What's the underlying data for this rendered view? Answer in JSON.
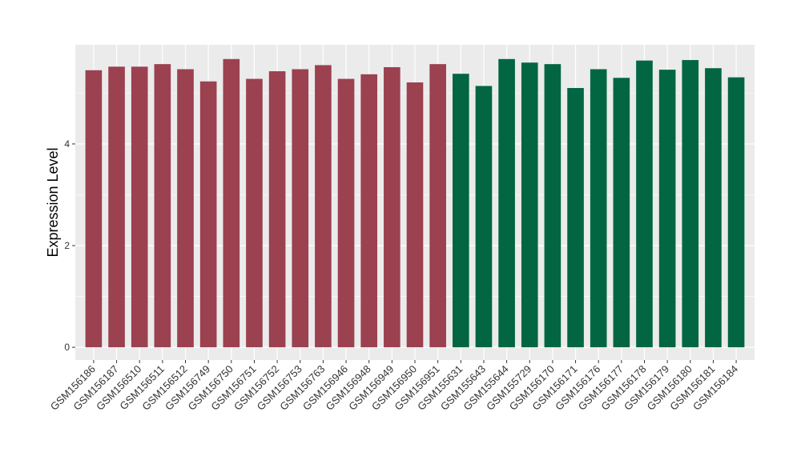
{
  "chart_data": {
    "type": "bar",
    "ylabel": "Expression Level",
    "xlabel": "",
    "ylim": [
      -0.25,
      5.95
    ],
    "yticks": [
      0,
      2,
      4
    ],
    "grid": true,
    "legend": "none",
    "panel_background": "#ebebeb",
    "gridline_color": "#ffffff",
    "categories": [
      "GSM156186",
      "GSM156187",
      "GSM156510",
      "GSM156511",
      "GSM156512",
      "GSM156749",
      "GSM156750",
      "GSM156751",
      "GSM156752",
      "GSM156753",
      "GSM156763",
      "GSM156946",
      "GSM156948",
      "GSM156949",
      "GSM156950",
      "GSM156951",
      "GSM155631",
      "GSM155643",
      "GSM155644",
      "GSM155729",
      "GSM156170",
      "GSM156171",
      "GSM156176",
      "GSM156177",
      "GSM156178",
      "GSM156179",
      "GSM156180",
      "GSM156181",
      "GSM156184"
    ],
    "values": [
      5.45,
      5.52,
      5.52,
      5.57,
      5.47,
      5.23,
      5.67,
      5.28,
      5.43,
      5.47,
      5.55,
      5.28,
      5.37,
      5.51,
      5.21,
      5.57,
      5.38,
      5.14,
      5.67,
      5.6,
      5.57,
      5.1,
      5.47,
      5.3,
      5.64,
      5.46,
      5.65,
      5.49,
      5.31
    ],
    "colors": [
      "#9b4150",
      "#9b4150",
      "#9b4150",
      "#9b4150",
      "#9b4150",
      "#9b4150",
      "#9b4150",
      "#9b4150",
      "#9b4150",
      "#9b4150",
      "#9b4150",
      "#9b4150",
      "#9b4150",
      "#9b4150",
      "#9b4150",
      "#9b4150",
      "#026643",
      "#026643",
      "#026643",
      "#026643",
      "#026643",
      "#026643",
      "#026643",
      "#026643",
      "#026643",
      "#026643",
      "#026643",
      "#026643",
      "#026643"
    ]
  }
}
